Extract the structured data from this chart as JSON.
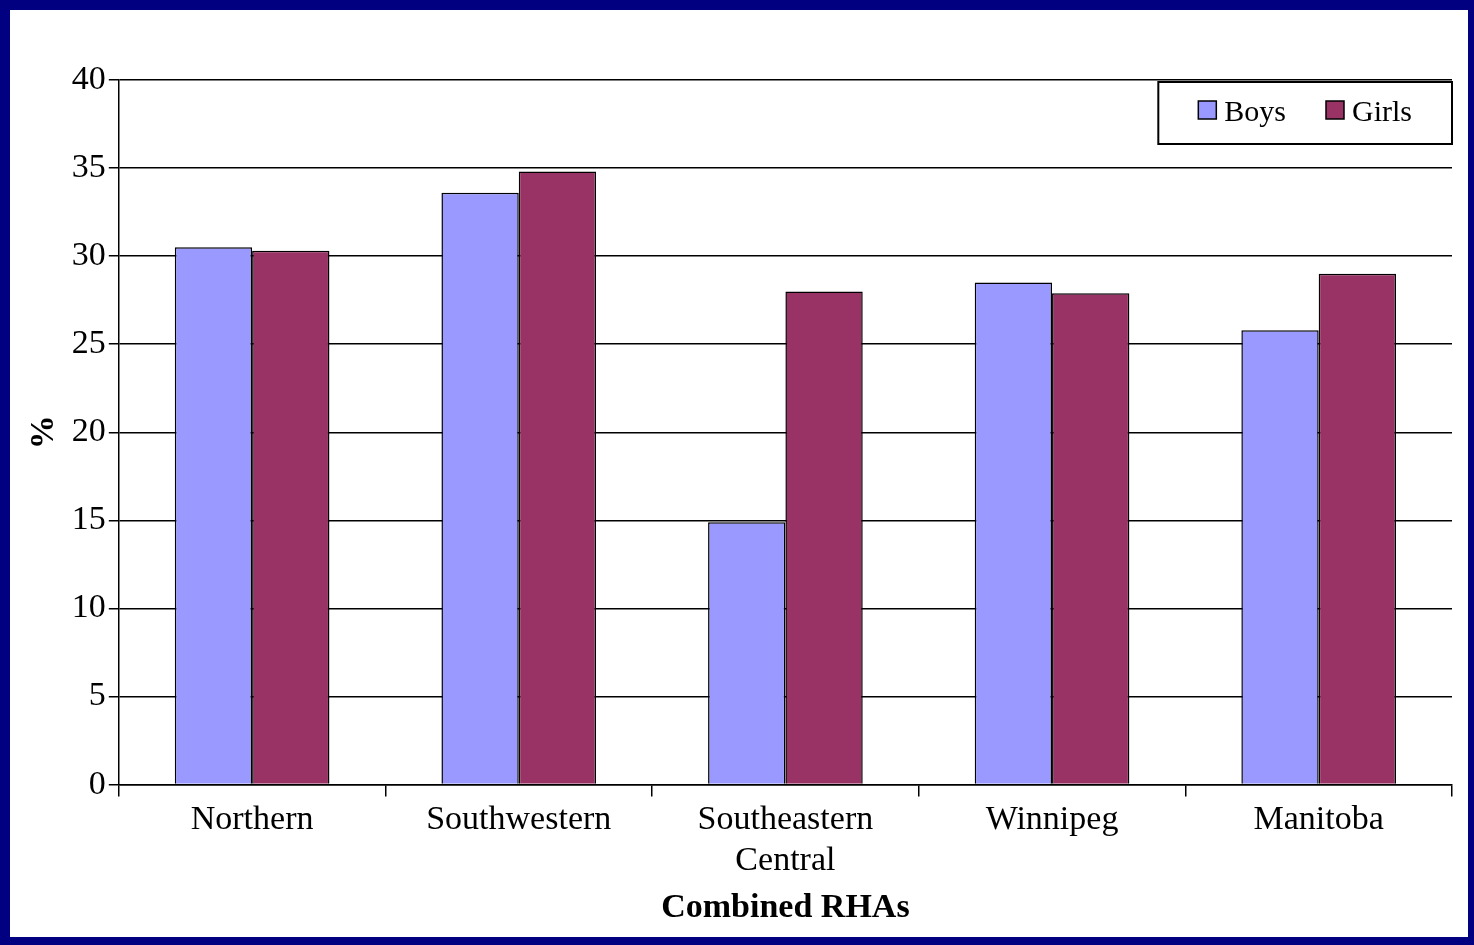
{
  "chart_data": {
    "type": "bar",
    "xlabel": "Combined RHAs",
    "ylabel": "%",
    "categories": [
      "Northern",
      "Southwestern",
      "Southeastern Central",
      "Winnipeg",
      "Manitoba"
    ],
    "series": [
      {
        "name": "Boys",
        "color": "#9999ff",
        "values": [
          30.5,
          33.6,
          14.9,
          28.5,
          25.8
        ]
      },
      {
        "name": "Girls",
        "color": "#993366",
        "values": [
          30.3,
          34.8,
          28.0,
          27.9,
          29.0
        ]
      }
    ],
    "ylim": [
      0,
      40
    ],
    "yticks": [
      0,
      5,
      10,
      15,
      20,
      25,
      30,
      35,
      40
    ],
    "grid": "y",
    "legend": "top right"
  }
}
